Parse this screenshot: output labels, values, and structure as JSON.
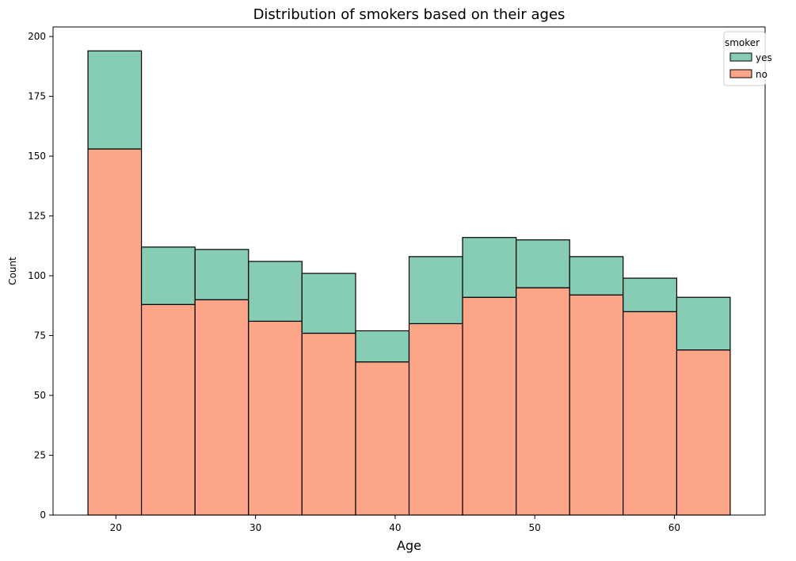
{
  "chart_data": {
    "type": "bar",
    "stacked": true,
    "title": "Distribution of smokers based on their ages",
    "xlabel": "Age",
    "ylabel": "Count",
    "xlim": [
      15.5,
      66.5
    ],
    "ylim": [
      0,
      204
    ],
    "x_ticks": [
      20,
      30,
      40,
      50,
      60
    ],
    "y_ticks": [
      0,
      25,
      50,
      75,
      100,
      125,
      150,
      175,
      200
    ],
    "bin_edges": [
      18,
      21.83,
      25.67,
      29.5,
      33.33,
      37.17,
      41,
      44.83,
      48.67,
      52.5,
      56.33,
      60.17,
      64
    ],
    "series": [
      {
        "name": "no",
        "color": "#fca587",
        "values": [
          153,
          88,
          90,
          81,
          76,
          64,
          80,
          91,
          95,
          92,
          85,
          69
        ]
      },
      {
        "name": "yes",
        "color": "#87cdb6",
        "values": [
          41,
          24,
          21,
          25,
          25,
          13,
          28,
          25,
          20,
          16,
          14,
          22
        ]
      }
    ],
    "legend": {
      "title": "smoker",
      "position": "top-right",
      "entries": [
        {
          "label": "yes",
          "color": "#87cdb6"
        },
        {
          "label": "no",
          "color": "#fca587"
        }
      ]
    },
    "grid": false
  }
}
